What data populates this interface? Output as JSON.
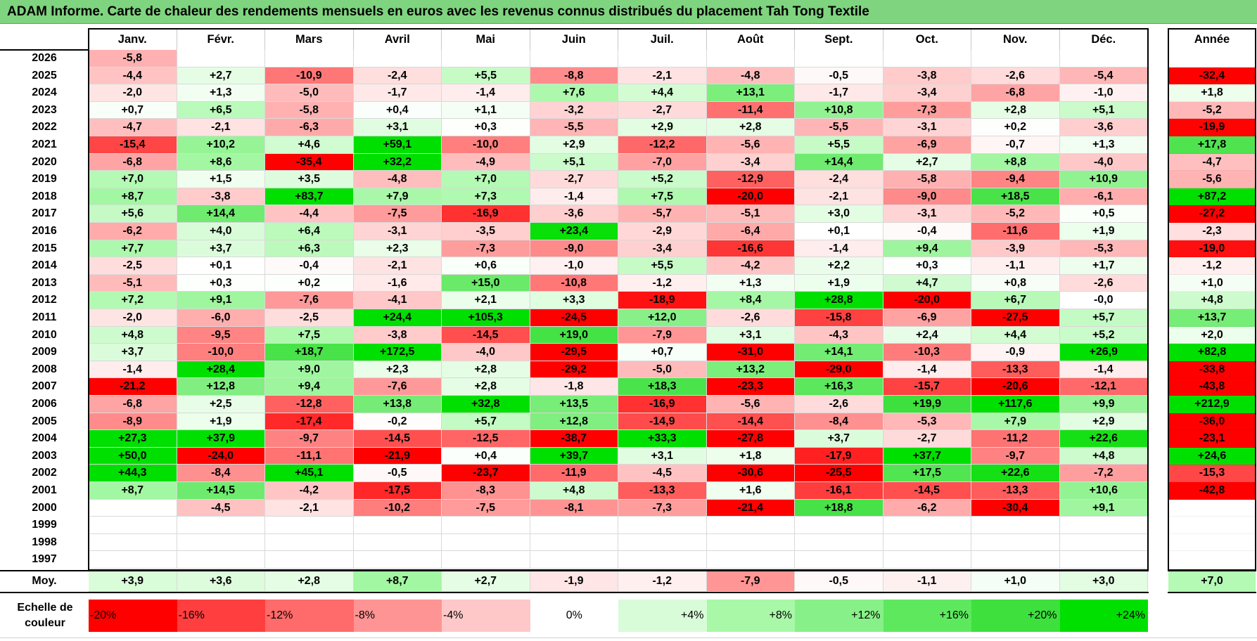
{
  "title": "ADAM Informe. Carte de chaleur des rendements mensuels en euros avec les revenus connus distribués du placement Tah Tong Textile",
  "chart_data": {
    "type": "heatmap",
    "title": "ADAM Informe. Carte de chaleur des rendements mensuels en euros avec les revenus connus distribués du placement Tah Tong Textile",
    "columns": [
      "Janv.",
      "Févr.",
      "Mars",
      "Avril",
      "Mai",
      "Juin",
      "Juil.",
      "Août",
      "Sept.",
      "Oct.",
      "Nov.",
      "Déc."
    ],
    "year_column_label": "Année",
    "rows": [
      {
        "year": "2026",
        "values": [
          "-5,8",
          null,
          null,
          null,
          null,
          null,
          null,
          null,
          null,
          null,
          null,
          null
        ],
        "annual": null
      },
      {
        "year": "2025",
        "values": [
          "-4,4",
          "+2,7",
          "-10,9",
          "-2,4",
          "+5,5",
          "-8,8",
          "-2,1",
          "-4,8",
          "-0,5",
          "-3,8",
          "-2,6",
          "-5,4"
        ],
        "annual": "-32,4"
      },
      {
        "year": "2024",
        "values": [
          "-2,0",
          "+1,3",
          "-5,0",
          "-1,7",
          "-1,4",
          "+7,6",
          "+4,4",
          "+13,1",
          "-1,7",
          "-3,4",
          "-6,8",
          "-1,0"
        ],
        "annual": "+1,8"
      },
      {
        "year": "2023",
        "values": [
          "+0,7",
          "+6,5",
          "-5,8",
          "+0,4",
          "+1,1",
          "-3,2",
          "-2,7",
          "-11,4",
          "+10,8",
          "-7,3",
          "+2,8",
          "+5,1"
        ],
        "annual": "-5,2"
      },
      {
        "year": "2022",
        "values": [
          "-4,7",
          "-2,1",
          "-6,3",
          "+3,1",
          "+0,3",
          "-5,5",
          "+2,9",
          "+2,8",
          "-5,5",
          "-3,1",
          "+0,2",
          "-3,6"
        ],
        "annual": "-19,9"
      },
      {
        "year": "2021",
        "values": [
          "-15,4",
          "+10,2",
          "+4,6",
          "+59,1",
          "-10,0",
          "+2,9",
          "-12,2",
          "-5,6",
          "+5,5",
          "-6,9",
          "-0,7",
          "+1,3"
        ],
        "annual": "+17,8"
      },
      {
        "year": "2020",
        "values": [
          "-6,8",
          "+8,6",
          "-35,4",
          "+32,2",
          "-4,9",
          "+5,1",
          "-7,0",
          "-3,4",
          "+14,4",
          "+2,7",
          "+8,8",
          "-4,0"
        ],
        "annual": "-4,7"
      },
      {
        "year": "2019",
        "values": [
          "+7,0",
          "+1,5",
          "+3,5",
          "-4,8",
          "+7,0",
          "-2,7",
          "+5,2",
          "-12,9",
          "-2,4",
          "-5,8",
          "-9,4",
          "+10,9"
        ],
        "annual": "-5,6"
      },
      {
        "year": "2018",
        "values": [
          "+8,7",
          "-3,8",
          "+83,7",
          "+7,9",
          "+7,3",
          "-1,4",
          "+7,5",
          "-20,0",
          "-2,1",
          "-9,0",
          "+18,5",
          "-6,1"
        ],
        "annual": "+87,2"
      },
      {
        "year": "2017",
        "values": [
          "+5,6",
          "+14,4",
          "-4,4",
          "-7,5",
          "-16,9",
          "-3,6",
          "-5,7",
          "-5,1",
          "+3,0",
          "-3,1",
          "-5,2",
          "+0,5"
        ],
        "annual": "-27,2"
      },
      {
        "year": "2016",
        "values": [
          "-6,2",
          "+4,0",
          "+6,4",
          "-3,1",
          "-3,5",
          "+23,4",
          "-2,9",
          "-6,4",
          "+0,1",
          "-0,4",
          "-11,6",
          "+1,9"
        ],
        "annual": "-2,3"
      },
      {
        "year": "2015",
        "values": [
          "+7,7",
          "+3,7",
          "+6,3",
          "+2,3",
          "-7,3",
          "-9,0",
          "-3,4",
          "-16,6",
          "-1,4",
          "+9,4",
          "-3,9",
          "-5,3"
        ],
        "annual": "-19,0"
      },
      {
        "year": "2014",
        "values": [
          "-2,5",
          "+0,1",
          "-0,4",
          "-2,1",
          "+0,6",
          "-1,0",
          "+5,5",
          "-4,2",
          "+2,2",
          "+0,3",
          "-1,1",
          "+1,7"
        ],
        "annual": "-1,2"
      },
      {
        "year": "2013",
        "values": [
          "-5,1",
          "+0,3",
          "+0,2",
          "-1,6",
          "+15,0",
          "-10,8",
          "-1,2",
          "+1,3",
          "+1,9",
          "+4,7",
          "+0,8",
          "-2,6"
        ],
        "annual": "+1,0"
      },
      {
        "year": "2012",
        "values": [
          "+7,2",
          "+9,1",
          "-7,6",
          "-4,1",
          "+2,1",
          "+3,3",
          "-18,9",
          "+8,4",
          "+28,8",
          "-20,0",
          "+6,7",
          "-0,0"
        ],
        "annual": "+4,8"
      },
      {
        "year": "2011",
        "values": [
          "-2,0",
          "-6,0",
          "-2,5",
          "+24,4",
          "+105,3",
          "-24,5",
          "+12,0",
          "-2,6",
          "-15,8",
          "-6,9",
          "-27,5",
          "+5,7"
        ],
        "annual": "+13,7"
      },
      {
        "year": "2010",
        "values": [
          "+4,8",
          "-9,5",
          "+7,5",
          "-3,8",
          "-14,5",
          "+19,0",
          "-7,9",
          "+3,1",
          "-4,3",
          "+2,4",
          "+4,4",
          "+5,2"
        ],
        "annual": "+2,0"
      },
      {
        "year": "2009",
        "values": [
          "+3,7",
          "-10,0",
          "+18,7",
          "+172,5",
          "-4,0",
          "-29,5",
          "+0,7",
          "-31,0",
          "+14,1",
          "-10,3",
          "-0,9",
          "+26,9"
        ],
        "annual": "+82,8"
      },
      {
        "year": "2008",
        "values": [
          "-1,4",
          "+28,4",
          "+9,0",
          "+2,3",
          "+2,8",
          "-29,2",
          "-5,0",
          "+13,2",
          "-29,0",
          "-1,4",
          "-13,3",
          "-1,4"
        ],
        "annual": "-33,8"
      },
      {
        "year": "2007",
        "values": [
          "-21,2",
          "+12,8",
          "+9,4",
          "-7,6",
          "+2,8",
          "-1,8",
          "+18,3",
          "-23,3",
          "+16,3",
          "-15,7",
          "-20,6",
          "-12,1"
        ],
        "annual": "-43,8"
      },
      {
        "year": "2006",
        "values": [
          "-6,8",
          "+2,5",
          "-12,8",
          "+13,8",
          "+32,8",
          "+13,5",
          "-16,9",
          "-5,6",
          "-2,6",
          "+19,9",
          "+117,6",
          "+9,9"
        ],
        "annual": "+212,9"
      },
      {
        "year": "2005",
        "values": [
          "-8,9",
          "+1,9",
          "-17,4",
          "-0,2",
          "+5,7",
          "+12,8",
          "-14,9",
          "-14,4",
          "-8,4",
          "-5,3",
          "+7,9",
          "+2,9"
        ],
        "annual": "-36,0"
      },
      {
        "year": "2004",
        "values": [
          "+27,3",
          "+37,9",
          "-9,7",
          "-14,5",
          "-12,5",
          "-38,7",
          "+33,3",
          "-27,8",
          "+3,7",
          "-2,7",
          "-11,2",
          "+22,6"
        ],
        "annual": "-23,1"
      },
      {
        "year": "2003",
        "values": [
          "+50,0",
          "-24,0",
          "-11,1",
          "-21,9",
          "+0,4",
          "+39,7",
          "+3,1",
          "+1,8",
          "-17,9",
          "+37,7",
          "-9,7",
          "+4,8"
        ],
        "annual": "+24,6"
      },
      {
        "year": "2002",
        "values": [
          "+44,3",
          "-8,4",
          "+45,1",
          "-0,5",
          "-23,7",
          "-11,9",
          "-4,5",
          "-30,6",
          "-25,5",
          "+17,5",
          "+22,6",
          "-7,2"
        ],
        "annual": "-15,3"
      },
      {
        "year": "2001",
        "values": [
          "+8,7",
          "+14,5",
          "-4,2",
          "-17,5",
          "-8,3",
          "+4,8",
          "-13,3",
          "+1,6",
          "-16,1",
          "-14,5",
          "-13,3",
          "+10,6"
        ],
        "annual": "-42,8"
      },
      {
        "year": "2000",
        "values": [
          null,
          "-4,5",
          "-2,1",
          "-10,2",
          "-7,5",
          "-8,1",
          "-7,3",
          "-21,4",
          "+18,8",
          "-6,2",
          "-30,4",
          "+9,1"
        ],
        "annual": null
      },
      {
        "year": "1999",
        "values": [
          null,
          null,
          null,
          null,
          null,
          null,
          null,
          null,
          null,
          null,
          null,
          null
        ],
        "annual": null
      },
      {
        "year": "1998",
        "values": [
          null,
          null,
          null,
          null,
          null,
          null,
          null,
          null,
          null,
          null,
          null,
          null
        ],
        "annual": null
      },
      {
        "year": "1997",
        "values": [
          null,
          null,
          null,
          null,
          null,
          null,
          null,
          null,
          null,
          null,
          null,
          null
        ],
        "annual": null
      }
    ],
    "average": {
      "label": "Moy.",
      "values": [
        "+3,9",
        "+3,6",
        "+2,8",
        "+8,7",
        "+2,7",
        "-1,9",
        "-1,2",
        "-7,9",
        "-0,5",
        "-1,1",
        "+1,0",
        "+3,0"
      ],
      "annual": "+7,0"
    },
    "color_scale": {
      "label_line1": "Echelle de",
      "label_line2": "couleur",
      "steps": [
        {
          "label": "-20%",
          "value": -20,
          "color": "#ff0000"
        },
        {
          "label": "-16%",
          "value": -16,
          "color": "#ff3f3f"
        },
        {
          "label": "-12%",
          "value": -12,
          "color": "#ff6a6a"
        },
        {
          "label": "-8%",
          "value": -8,
          "color": "#ff9494"
        },
        {
          "label": "-4%",
          "value": -4,
          "color": "#ffc8c8"
        },
        {
          "label": "0%",
          "value": 0,
          "color": "#ffffff"
        },
        {
          "label": "+4%",
          "value": 4,
          "color": "#d8fcd8"
        },
        {
          "label": "+8%",
          "value": 8,
          "color": "#a8f8a8"
        },
        {
          "label": "+12%",
          "value": 12,
          "color": "#88f088"
        },
        {
          "label": "+16%",
          "value": 16,
          "color": "#5ee85e"
        },
        {
          "label": "+20%",
          "value": 20,
          "color": "#3de03d"
        },
        {
          "label": "+24%",
          "value": 24,
          "color": "#00e000"
        }
      ]
    }
  }
}
